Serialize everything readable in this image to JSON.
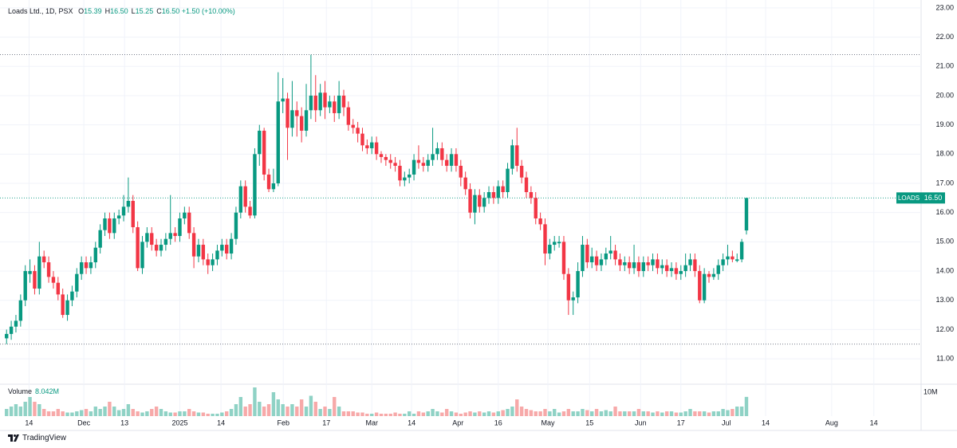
{
  "chart_data": {
    "type": "candlestick",
    "title": "Loads Ltd., 1D, PSX",
    "ohlc_legend": [
      {
        "key": "O",
        "value": "15.39"
      },
      {
        "key": "H",
        "value": "16.50"
      },
      {
        "key": "L",
        "value": "15.25"
      },
      {
        "key": "C",
        "value": "16.50"
      }
    ],
    "change": "+1.50 (+10.00%)",
    "volume_title": "Volume",
    "volume_last": "8.042M",
    "price_tag": {
      "symbol": "LOADS",
      "label": "16.50"
    },
    "brand": "TradingView",
    "colors": {
      "up": "#089981",
      "down": "#f23645",
      "up_volume": "#8fd2c5",
      "down_volume": "#f7a9a9"
    },
    "grid": true,
    "xlim": [
      -1.4,
      195.3
    ],
    "xticks": [
      {
        "value": 4.8,
        "label": "14"
      },
      {
        "value": 16.5,
        "label": "Dec"
      },
      {
        "value": 25.2,
        "label": "13"
      },
      {
        "value": 37.0,
        "label": "2025"
      },
      {
        "value": 45.8,
        "label": "14"
      },
      {
        "value": 59.1,
        "label": "Feb"
      },
      {
        "value": 68.3,
        "label": "17"
      },
      {
        "value": 78.0,
        "label": "Mar"
      },
      {
        "value": 86.5,
        "label": "14"
      },
      {
        "value": 96.4,
        "label": "Apr"
      },
      {
        "value": 105.0,
        "label": "16"
      },
      {
        "value": 115.6,
        "label": "May"
      },
      {
        "value": 124.5,
        "label": "15"
      },
      {
        "value": 135.4,
        "label": "Jun"
      },
      {
        "value": 144.0,
        "label": "17"
      },
      {
        "value": 153.7,
        "label": "Jul"
      },
      {
        "value": 162.1,
        "label": "14"
      },
      {
        "value": 176.2,
        "label": "Aug"
      },
      {
        "value": 185.2,
        "label": "14"
      }
    ],
    "ylim": [
      10.13,
      23.27
    ],
    "yticks": [
      {
        "value": 11,
        "label": "11.00"
      },
      {
        "value": 12,
        "label": "12.00"
      },
      {
        "value": 13,
        "label": "13.00"
      },
      {
        "value": 14,
        "label": "14.00"
      },
      {
        "value": 15,
        "label": "15.00"
      },
      {
        "value": 16,
        "label": "16.00"
      },
      {
        "value": 17,
        "label": "17.00"
      },
      {
        "value": 18,
        "label": "18.00"
      },
      {
        "value": 19,
        "label": "19.00"
      },
      {
        "value": 20,
        "label": "20.00"
      },
      {
        "value": 21,
        "label": "21.00"
      },
      {
        "value": 22,
        "label": "22.00"
      },
      {
        "value": 23,
        "label": "23.00"
      }
    ],
    "volume_ylim": [
      0,
      13
    ],
    "volume_ticks": [
      {
        "value": 10,
        "label": "10M"
      }
    ],
    "open": [
      11.7,
      11.85,
      12.1,
      12.3,
      13.0,
      13.9,
      14.0,
      13.4,
      14.5,
      14.3,
      13.8,
      13.6,
      13.2,
      12.5,
      13.0,
      13.3,
      13.9,
      14.3,
      14.1,
      14.3,
      14.8,
      15.4,
      15.8,
      15.3,
      15.8,
      15.9,
      16.2,
      16.4,
      15.5,
      14.1,
      15.0,
      15.3,
      14.9,
      14.7,
      14.9,
      15.1,
      15.3,
      15.2,
      15.8,
      16.0,
      15.3,
      14.5,
      14.9,
      14.4,
      14.2,
      14.4,
      14.7,
      14.9,
      14.6,
      15.1,
      16.0,
      16.9,
      16.2,
      15.9,
      18.0,
      18.8,
      17.3,
      16.8,
      17.0,
      19.8,
      19.9,
      18.9,
      19.5,
      19.3,
      18.8,
      19.5,
      20.0,
      19.5,
      20.1,
      19.6,
      19.8,
      19.4,
      20.0,
      19.6,
      19.0,
      18.9,
      18.7,
      18.3,
      18.2,
      18.4,
      18.0,
      17.9,
      17.8,
      17.7,
      17.6,
      17.1,
      17.2,
      17.3,
      17.8,
      17.7,
      17.6,
      17.8,
      18.0,
      18.2,
      17.8,
      17.6,
      18.0,
      17.6,
      17.2,
      16.8,
      16.0,
      16.6,
      16.2,
      16.5,
      16.7,
      16.5,
      16.9,
      16.7,
      17.5,
      18.3,
      17.6,
      17.2,
      16.7,
      16.5,
      15.8,
      15.6,
      14.6,
      14.9,
      14.95,
      15.0,
      13.9,
      13.0,
      13.1,
      14.0,
      14.9,
      14.3,
      14.5,
      14.2,
      14.4,
      14.6,
      14.7,
      14.4,
      14.2,
      14.3,
      14.1,
      14.3,
      14.0,
      14.3,
      14.2,
      14.4,
      14.1,
      14.2,
      14.0,
      14.1,
      13.9,
      14.0,
      14.2,
      14.4,
      14.0,
      13.0,
      13.9,
      13.8,
      13.9,
      14.2,
      14.4,
      14.5,
      14.35,
      14.4,
      15.39
    ],
    "high": [
      12.0,
      12.3,
      12.5,
      13.2,
      14.2,
      14.4,
      14.2,
      15.0,
      14.7,
      14.5,
      14.0,
      13.8,
      13.4,
      13.2,
      13.5,
      14.1,
      14.5,
      14.5,
      14.5,
      15.0,
      15.6,
      16.0,
      16.0,
      16.0,
      16.1,
      16.6,
      17.2,
      16.6,
      15.7,
      15.2,
      15.5,
      15.5,
      15.1,
      15.1,
      15.3,
      16.6,
      15.5,
      16.0,
      16.2,
      16.2,
      15.5,
      15.1,
      15.1,
      14.6,
      14.6,
      14.9,
      15.1,
      15.1,
      15.3,
      16.2,
      17.1,
      17.1,
      16.4,
      18.2,
      19.0,
      18.9,
      17.5,
      17.5,
      20.8,
      20.6,
      20.1,
      20.5,
      19.8,
      19.6,
      20.4,
      21.4,
      20.7,
      20.4,
      20.5,
      20.0,
      20.0,
      20.5,
      20.2,
      19.8,
      19.2,
      19.1,
      18.9,
      18.5,
      18.6,
      18.6,
      18.1,
      18.0,
      18.0,
      17.9,
      17.8,
      17.4,
      17.5,
      18.0,
      18.3,
      17.9,
      18.0,
      18.9,
      18.4,
      18.4,
      18.0,
      18.2,
      18.2,
      17.8,
      17.4,
      17.0,
      16.8,
      16.8,
      16.7,
      16.9,
      16.9,
      17.1,
      17.1,
      17.7,
      18.5,
      18.9,
      17.8,
      17.4,
      16.9,
      16.7,
      16.0,
      15.8,
      15.1,
      15.2,
      15.2,
      15.2,
      14.1,
      13.3,
      14.3,
      15.2,
      15.1,
      14.8,
      14.7,
      14.6,
      14.8,
      15.2,
      14.9,
      14.6,
      14.5,
      14.5,
      14.9,
      14.5,
      14.5,
      14.5,
      14.6,
      14.6,
      14.4,
      14.4,
      14.3,
      14.3,
      14.2,
      14.6,
      14.6,
      14.6,
      14.2,
      14.1,
      14.0,
      14.1,
      14.4,
      14.6,
      14.9,
      14.7,
      14.6,
      15.1,
      16.5
    ],
    "low": [
      11.5,
      11.65,
      11.9,
      12.1,
      12.8,
      13.6,
      13.2,
      13.2,
      14.1,
      13.6,
      13.4,
      13.0,
      12.4,
      12.3,
      12.8,
      13.1,
      13.7,
      13.9,
      13.9,
      14.1,
      14.6,
      15.2,
      15.1,
      15.1,
      15.6,
      15.7,
      16.0,
      15.3,
      14.0,
      13.9,
      14.8,
      14.7,
      14.5,
      14.5,
      14.7,
      14.9,
      15.0,
      15.0,
      15.6,
      15.1,
      14.1,
      14.3,
      14.2,
      13.9,
      14.0,
      14.2,
      14.5,
      14.4,
      14.4,
      14.9,
      15.8,
      16.0,
      15.8,
      15.8,
      17.6,
      17.1,
      16.7,
      16.7,
      16.9,
      19.4,
      17.8,
      18.6,
      18.6,
      18.4,
      18.6,
      19.2,
      19.1,
      19.3,
      19.2,
      19.4,
      19.1,
      19.2,
      19.3,
      18.8,
      18.7,
      18.4,
      18.1,
      18.0,
      18.0,
      17.8,
      17.7,
      17.6,
      17.5,
      17.4,
      16.9,
      16.9,
      17.0,
      17.1,
      17.5,
      17.4,
      17.4,
      17.6,
      17.8,
      17.6,
      17.4,
      17.4,
      17.4,
      16.9,
      16.6,
      15.8,
      15.6,
      16.0,
      16.0,
      16.3,
      16.3,
      16.3,
      16.5,
      16.5,
      17.3,
      17.4,
      17.0,
      16.5,
      16.3,
      15.6,
      15.4,
      14.2,
      14.4,
      14.7,
      14.8,
      13.7,
      12.5,
      12.5,
      12.9,
      13.8,
      14.1,
      14.1,
      14.0,
      14.0,
      14.2,
      14.4,
      14.2,
      14.0,
      14.0,
      13.9,
      13.9,
      13.8,
      13.8,
      14.0,
      14.0,
      13.9,
      13.9,
      13.8,
      13.8,
      13.7,
      13.7,
      13.8,
      14.0,
      13.8,
      12.9,
      12.9,
      13.6,
      13.7,
      13.7,
      14.0,
      14.2,
      14.3,
      14.3,
      14.3,
      15.25
    ],
    "close": [
      11.85,
      12.1,
      12.3,
      13.0,
      14.0,
      14.0,
      13.4,
      14.5,
      14.3,
      13.8,
      13.6,
      13.2,
      12.5,
      13.0,
      13.3,
      13.9,
      14.3,
      14.1,
      14.3,
      14.8,
      15.4,
      15.8,
      15.3,
      15.8,
      15.9,
      16.2,
      16.4,
      15.5,
      14.1,
      15.0,
      15.3,
      14.9,
      14.7,
      14.9,
      15.1,
      15.3,
      15.2,
      15.8,
      16.0,
      15.3,
      14.5,
      14.9,
      14.4,
      14.2,
      14.4,
      14.7,
      14.9,
      14.6,
      15.1,
      16.0,
      16.9,
      16.2,
      15.9,
      18.0,
      18.8,
      17.3,
      16.8,
      17.0,
      19.8,
      19.9,
      18.9,
      19.5,
      19.3,
      18.8,
      19.5,
      20.0,
      19.5,
      20.1,
      19.6,
      19.8,
      19.4,
      20.0,
      19.6,
      19.0,
      18.9,
      18.7,
      18.3,
      18.2,
      18.4,
      18.0,
      17.9,
      17.8,
      17.7,
      17.6,
      17.1,
      17.2,
      17.3,
      17.8,
      17.7,
      17.6,
      17.8,
      18.0,
      18.2,
      17.8,
      17.6,
      18.0,
      17.6,
      17.2,
      16.8,
      16.0,
      16.6,
      16.2,
      16.5,
      16.7,
      16.5,
      16.9,
      16.7,
      17.5,
      18.3,
      17.6,
      17.2,
      16.7,
      16.5,
      15.8,
      15.6,
      14.6,
      14.9,
      15.0,
      15.0,
      13.9,
      13.0,
      13.1,
      14.0,
      14.9,
      14.3,
      14.5,
      14.2,
      14.4,
      14.6,
      14.7,
      14.4,
      14.2,
      14.3,
      14.1,
      14.3,
      14.0,
      14.3,
      14.2,
      14.4,
      14.1,
      14.2,
      14.0,
      14.1,
      13.9,
      14.0,
      14.2,
      14.4,
      14.0,
      13.0,
      13.9,
      13.8,
      13.9,
      14.2,
      14.4,
      14.5,
      14.4,
      14.4,
      15.0,
      16.5
    ],
    "volume": [
      3,
      4,
      5,
      4,
      6,
      8,
      6,
      5,
      3,
      2,
      2,
      3,
      2,
      1.5,
      1.5,
      2,
      2.5,
      3,
      2,
      4,
      3,
      4,
      6,
      4,
      2.5,
      3,
      5,
      3,
      2,
      1.5,
      2,
      3,
      4,
      3,
      2,
      1.5,
      1.5,
      2,
      2,
      3,
      2,
      1.5,
      1.5,
      1,
      1,
      1,
      1.5,
      2,
      3,
      5,
      8,
      4,
      5,
      12,
      6,
      4,
      5,
      10,
      7,
      5,
      4,
      5,
      4,
      7,
      4,
      8.5,
      6,
      3,
      4,
      3,
      8,
      4,
      2,
      2,
      2,
      1.5,
      1.5,
      1,
      1,
      1.5,
      1,
      1,
      1,
      1.5,
      1,
      1,
      2,
      1,
      2,
      1.5,
      2,
      3,
      2,
      1.5,
      3,
      2,
      1.5,
      1,
      1.5,
      2,
      1.5,
      2,
      1.5,
      2,
      1.5,
      2,
      2.5,
      3,
      4,
      7,
      4,
      3,
      2.5,
      2,
      2,
      3,
      2,
      3,
      1.5,
      2,
      3,
      2,
      2,
      3,
      2.5,
      2,
      3,
      2,
      2.5,
      2,
      4,
      2,
      2,
      2,
      2,
      3,
      2,
      2,
      1.5,
      2,
      1.5,
      2,
      2,
      1.5,
      1.5,
      2,
      3,
      2,
      2,
      2,
      1.5,
      2,
      2,
      3,
      2.5,
      3,
      4,
      4,
      8.042
    ]
  }
}
